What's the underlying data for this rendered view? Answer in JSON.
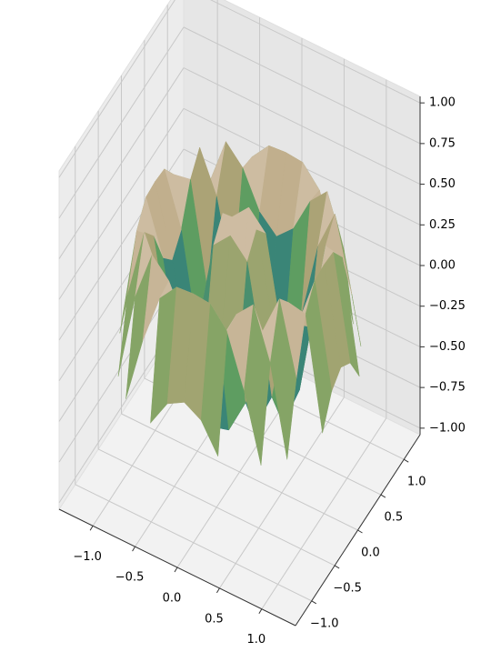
{
  "chart_data": {
    "type": "surface3d",
    "x": [
      -1.2,
      -1.0,
      -0.8,
      -0.6,
      -0.4,
      -0.2,
      0,
      0.2,
      0.4,
      0.6,
      0.8,
      1.0,
      1.2
    ],
    "y": [
      -1.2,
      -1.0,
      -0.8,
      -0.6,
      -0.4,
      -0.2,
      0,
      0.2,
      0.4,
      0.6,
      0.8,
      1.0,
      1.2
    ],
    "z": [
      [
        null,
        null,
        null,
        null,
        -0.32,
        -0.15,
        -0.09,
        -0.15,
        -0.32,
        null,
        null,
        null,
        null
      ],
      [
        null,
        null,
        -0.36,
        0.05,
        0.36,
        0.48,
        0.49,
        0.48,
        0.36,
        0.05,
        -0.36,
        null,
        null
      ],
      [
        null,
        -0.36,
        0.18,
        0.49,
        0.38,
        0.16,
        0.06,
        0.16,
        0.38,
        0.49,
        0.18,
        -0.36,
        null
      ],
      [
        null,
        0.05,
        0.49,
        0.24,
        -0.25,
        -0.47,
        -0.5,
        -0.47,
        -0.25,
        0.24,
        0.49,
        0.05,
        null
      ],
      [
        -0.32,
        0.36,
        0.38,
        -0.25,
        -0.49,
        -0.21,
        -0.03,
        -0.21,
        -0.49,
        -0.25,
        0.38,
        0.36,
        -0.32
      ],
      [
        -0.15,
        0.48,
        0.16,
        -0.47,
        -0.21,
        0.39,
        0.5,
        0.39,
        -0.21,
        -0.47,
        0.16,
        0.48,
        -0.15
      ],
      [
        -0.09,
        0.49,
        0.06,
        -0.5,
        -0.03,
        0.5,
        0,
        0.5,
        -0.03,
        -0.5,
        0.06,
        0.49,
        -0.09
      ],
      [
        -0.15,
        0.48,
        0.16,
        -0.47,
        -0.21,
        0.39,
        0.5,
        0.39,
        -0.21,
        -0.47,
        0.16,
        0.48,
        -0.15
      ],
      [
        -0.32,
        0.36,
        0.38,
        -0.25,
        -0.49,
        -0.21,
        -0.03,
        -0.21,
        -0.49,
        -0.25,
        0.38,
        0.36,
        -0.32
      ],
      [
        null,
        0.05,
        0.49,
        0.24,
        -0.25,
        -0.47,
        -0.5,
        -0.47,
        -0.25,
        0.24,
        0.49,
        0.05,
        null
      ],
      [
        null,
        -0.36,
        0.18,
        0.49,
        0.38,
        0.16,
        0.06,
        0.16,
        0.38,
        0.49,
        0.18,
        -0.36,
        null
      ],
      [
        null,
        null,
        -0.36,
        0.05,
        0.36,
        0.48,
        0.49,
        0.48,
        0.36,
        0.05,
        -0.36,
        null,
        null
      ],
      [
        null,
        null,
        null,
        null,
        -0.32,
        -0.15,
        -0.09,
        -0.15,
        -0.32,
        null,
        null,
        null,
        null
      ]
    ],
    "colormap": [
      "#0b1a6e",
      "#2a7a80",
      "#6aa55a",
      "#b5a37a",
      "#f4e4e0"
    ],
    "xlim": [
      -1.4,
      1.4
    ],
    "ylim": [
      -1.35,
      1.35
    ],
    "zlim": [
      -1.04,
      1.04
    ],
    "xticks": [
      {
        "value": -1,
        "label": "−1.0"
      },
      {
        "value": -0.5,
        "label": "−0.5"
      },
      {
        "value": 0,
        "label": "0.0"
      },
      {
        "value": 0.5,
        "label": "0.5"
      },
      {
        "value": 1,
        "label": "1.0"
      }
    ],
    "yticks": [
      {
        "value": -1,
        "label": "−1.0"
      },
      {
        "value": -0.5,
        "label": "−0.5"
      },
      {
        "value": 0,
        "label": "0.0"
      },
      {
        "value": 0.5,
        "label": "0.5"
      },
      {
        "value": 1,
        "label": "1.0"
      }
    ],
    "zticks": [
      {
        "value": -1,
        "label": "−1.00"
      },
      {
        "value": -0.75,
        "label": "−0.75"
      },
      {
        "value": -0.5,
        "label": "−0.50"
      },
      {
        "value": -0.25,
        "label": "−0.25"
      },
      {
        "value": 0,
        "label": "0.00"
      },
      {
        "value": 0.25,
        "label": "0.25"
      },
      {
        "value": 0.5,
        "label": "0.50"
      },
      {
        "value": 0.75,
        "label": "0.75"
      },
      {
        "value": 1,
        "label": "1.00"
      }
    ],
    "grid": true
  }
}
